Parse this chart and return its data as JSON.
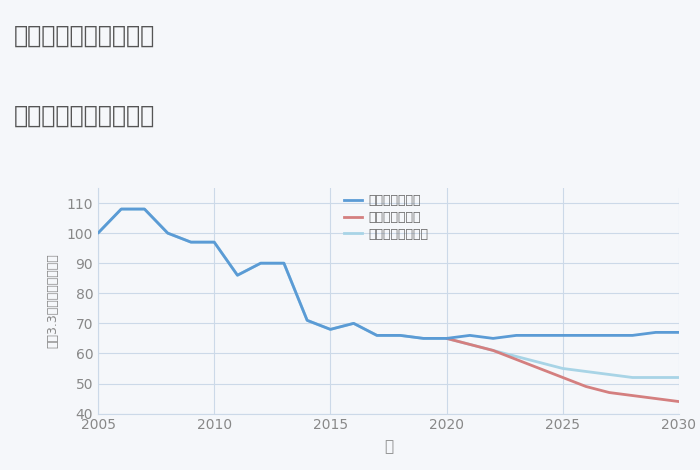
{
  "title_line1": "岐阜県関市洞戸大野の",
  "title_line2": "中古戸建ての価格推移",
  "xlabel": "年",
  "ylabel": "坪（3.3㎡）単価（万円）",
  "background_color": "#f5f7fa",
  "plot_bg_color": "#f5f7fa",
  "ylim": [
    40,
    115
  ],
  "xlim": [
    2005,
    2030
  ],
  "yticks": [
    40,
    50,
    60,
    70,
    80,
    90,
    100,
    110
  ],
  "xticks": [
    2005,
    2010,
    2015,
    2020,
    2025,
    2030
  ],
  "good_scenario": {
    "x": [
      2005,
      2006,
      2007,
      2008,
      2009,
      2010,
      2011,
      2012,
      2013,
      2014,
      2015,
      2016,
      2017,
      2018,
      2019,
      2020,
      2021,
      2022,
      2023,
      2024,
      2025,
      2026,
      2027,
      2028,
      2029,
      2030
    ],
    "y": [
      100,
      108,
      108,
      100,
      97,
      97,
      86,
      90,
      90,
      71,
      68,
      70,
      66,
      66,
      65,
      65,
      66,
      65,
      66,
      66,
      66,
      66,
      66,
      66,
      67,
      67
    ],
    "color": "#5b9bd5",
    "label": "グッドシナリオ",
    "linewidth": 2.0
  },
  "bad_scenario": {
    "x": [
      2020,
      2021,
      2022,
      2023,
      2024,
      2025,
      2026,
      2027,
      2028,
      2029,
      2030
    ],
    "y": [
      65,
      63,
      61,
      58,
      55,
      52,
      49,
      47,
      46,
      45,
      44
    ],
    "color": "#d47f7f",
    "label": "バッドシナリオ",
    "linewidth": 2.0
  },
  "normal_scenario": {
    "x": [
      2005,
      2006,
      2007,
      2008,
      2009,
      2010,
      2011,
      2012,
      2013,
      2014,
      2015,
      2016,
      2017,
      2018,
      2019,
      2020,
      2021,
      2022,
      2023,
      2024,
      2025,
      2026,
      2027,
      2028,
      2029,
      2030
    ],
    "y": [
      100,
      108,
      108,
      100,
      97,
      97,
      86,
      90,
      90,
      71,
      68,
      70,
      66,
      66,
      65,
      65,
      63,
      61,
      59,
      57,
      55,
      54,
      53,
      52,
      52,
      52
    ],
    "color": "#a8d4e6",
    "label": "ノーマルシナリオ",
    "linewidth": 2.0
  },
  "grid_color": "#ccd9e8",
  "title_color": "#555555",
  "tick_color": "#888888",
  "label_color": "#888888",
  "legend_text_color": "#666666"
}
